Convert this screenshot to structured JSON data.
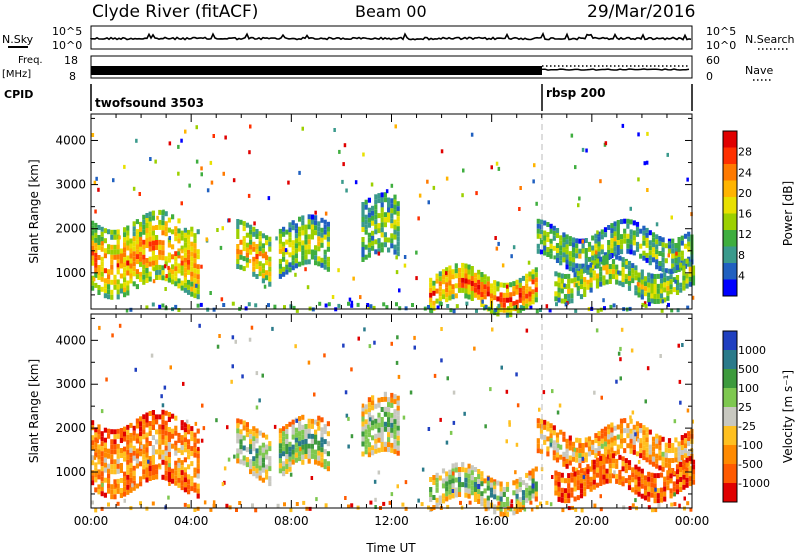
{
  "header": {
    "station": "Clyde River (fitACF)",
    "beam": "Beam 00",
    "date": "29/Mar/2016"
  },
  "top_panels": {
    "nsky_label": "N.Sky",
    "nsky_ticks": [
      "10^5",
      "10^0"
    ],
    "nsearch_label": "N.Search",
    "nsearch_ticks": [
      "10^5",
      "10^0"
    ],
    "freq_label_1": "Freq.",
    "freq_label_2": "[MHz]",
    "freq_ticks": [
      "18",
      "8"
    ],
    "nave_label": "Nave",
    "nave_ticks": [
      "60",
      "0"
    ],
    "cpid_label": "CPID",
    "cpid_segments": [
      {
        "name": "twofsound 3503",
        "start_hour": 0,
        "end_hour": 18
      },
      {
        "name": "rbsp 200",
        "start_hour": 18,
        "end_hour": 24
      }
    ]
  },
  "chart_data": [
    {
      "type": "heatmap",
      "title": "",
      "xlabel": "",
      "ylabel": "Slant Range [km]",
      "xlim": [
        0,
        24
      ],
      "ylim": [
        180,
        4600
      ],
      "xticks": [
        "00:00",
        "04:00",
        "08:00",
        "12:00",
        "16:00",
        "20:00",
        "00:00"
      ],
      "yticks": [
        1000,
        2000,
        3000,
        4000
      ],
      "colorbar": {
        "label": "Power [dB]",
        "ticks": [
          "28",
          "24",
          "20",
          "16",
          "12",
          "8",
          "4"
        ],
        "colors": [
          "#e00000",
          "#ff3000",
          "#ff7a00",
          "#ffb400",
          "#e8e000",
          "#9cd000",
          "#3fae3f",
          "#3a9a8c",
          "#2060c0",
          "#0000ff"
        ]
      },
      "echo_bands": [
        {
          "t0": 0.0,
          "t1": 4.3,
          "r0": 650,
          "r1": 2200,
          "level": 0.75
        },
        {
          "t0": 5.8,
          "t1": 7.2,
          "r0": 900,
          "r1": 2000,
          "level": 0.7
        },
        {
          "t0": 7.5,
          "t1": 9.5,
          "r0": 1000,
          "r1": 2100,
          "level": 0.5
        },
        {
          "t0": 10.8,
          "t1": 12.3,
          "r0": 1300,
          "r1": 2600,
          "level": 0.45
        },
        {
          "t0": 13.5,
          "t1": 17.8,
          "r0": 300,
          "r1": 1000,
          "level": 0.85
        },
        {
          "t0": 17.8,
          "t1": 24.0,
          "r0": 1300,
          "r1": 2000,
          "level": 0.45
        },
        {
          "t0": 18.5,
          "t1": 24.0,
          "r0": 600,
          "r1": 1200,
          "level": 0.55
        }
      ]
    },
    {
      "type": "heatmap",
      "title": "",
      "xlabel": "Time UT",
      "ylabel": "Slant Range [km]",
      "xlim": [
        0,
        24
      ],
      "ylim": [
        180,
        4600
      ],
      "xticks": [
        "00:00",
        "04:00",
        "08:00",
        "12:00",
        "16:00",
        "20:00",
        "00:00"
      ],
      "yticks": [
        1000,
        2000,
        3000,
        4000
      ],
      "colorbar": {
        "label": "Velocity [m s⁻¹]",
        "ticks": [
          "1000",
          "500",
          "100",
          "25",
          "-25",
          "-100",
          "-500",
          "-1000"
        ],
        "colors": [
          "#2040c0",
          "#2a7a8a",
          "#3d9a3d",
          "#7ec850",
          "#c8c8c0",
          "#ffc020",
          "#ff8a00",
          "#ff5a00",
          "#e00000"
        ]
      },
      "echo_bands": [
        {
          "t0": 0.0,
          "t1": 4.3,
          "r0": 650,
          "r1": 2200,
          "level": 0.35
        },
        {
          "t0": 5.8,
          "t1": 7.2,
          "r0": 900,
          "r1": 2000,
          "level": 0.7
        },
        {
          "t0": 7.5,
          "t1": 9.5,
          "r0": 1000,
          "r1": 2100,
          "level": 0.72
        },
        {
          "t0": 10.8,
          "t1": 12.3,
          "r0": 1300,
          "r1": 2600,
          "level": 0.7
        },
        {
          "t0": 13.5,
          "t1": 17.8,
          "r0": 300,
          "r1": 1000,
          "level": 0.75
        },
        {
          "t0": 17.8,
          "t1": 24.0,
          "r0": 1300,
          "r1": 2000,
          "level": 0.45
        },
        {
          "t0": 18.5,
          "t1": 24.0,
          "r0": 600,
          "r1": 1200,
          "level": 0.25
        }
      ]
    }
  ]
}
